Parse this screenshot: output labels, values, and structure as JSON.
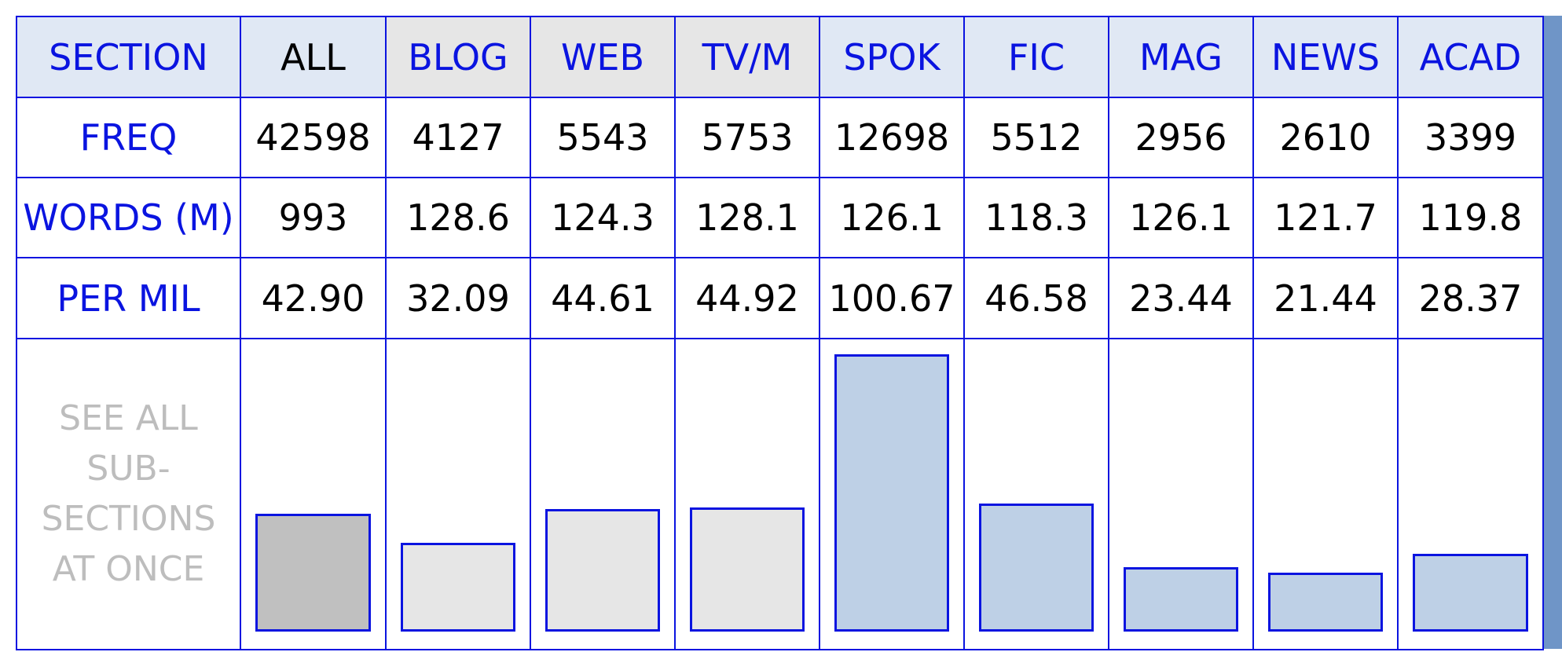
{
  "table": {
    "row_labels": {
      "section": "SECTION",
      "freq": "FREQ",
      "words": "WORDS (M)",
      "per_mil": "PER MIL"
    },
    "see_all": [
      "SEE ALL",
      "SUB-",
      "SECTIONS",
      "AT ONCE"
    ]
  },
  "colors": {
    "border": "#0a14e0",
    "header_blue": "#e0e8f4",
    "header_grey": "#e6e6e6",
    "bar_all": "#c0c0c0",
    "bar_grey": "#e6e6e6",
    "bar_blue": "#bed0e6",
    "see_all_text": "#bdbdbd"
  },
  "chart_data": {
    "type": "bar",
    "categories": [
      "ALL",
      "BLOG",
      "WEB",
      "TV/M",
      "SPOK",
      "FIC",
      "MAG",
      "NEWS",
      "ACAD"
    ],
    "freq": [
      "42598",
      "4127",
      "5543",
      "5753",
      "12698",
      "5512",
      "2956",
      "2610",
      "3399"
    ],
    "words_m": [
      "993",
      "128.6",
      "124.3",
      "128.1",
      "126.1",
      "118.3",
      "126.1",
      "121.7",
      "119.8"
    ],
    "per_mil_labels": [
      "42.90",
      "32.09",
      "44.61",
      "44.92",
      "100.67",
      "46.58",
      "23.44",
      "21.44",
      "28.37"
    ],
    "values": [
      42.9,
      32.09,
      44.61,
      44.92,
      100.67,
      46.58,
      23.44,
      21.44,
      28.37
    ],
    "bar_fill": [
      "bar_all",
      "bar_grey",
      "bar_grey",
      "bar_grey",
      "bar_blue",
      "bar_blue",
      "bar_blue",
      "bar_blue",
      "bar_blue"
    ],
    "header_style": [
      "all",
      "grey",
      "grey",
      "grey",
      "blue",
      "blue",
      "blue",
      "blue",
      "blue"
    ],
    "ylim": [
      0,
      100.67
    ]
  }
}
